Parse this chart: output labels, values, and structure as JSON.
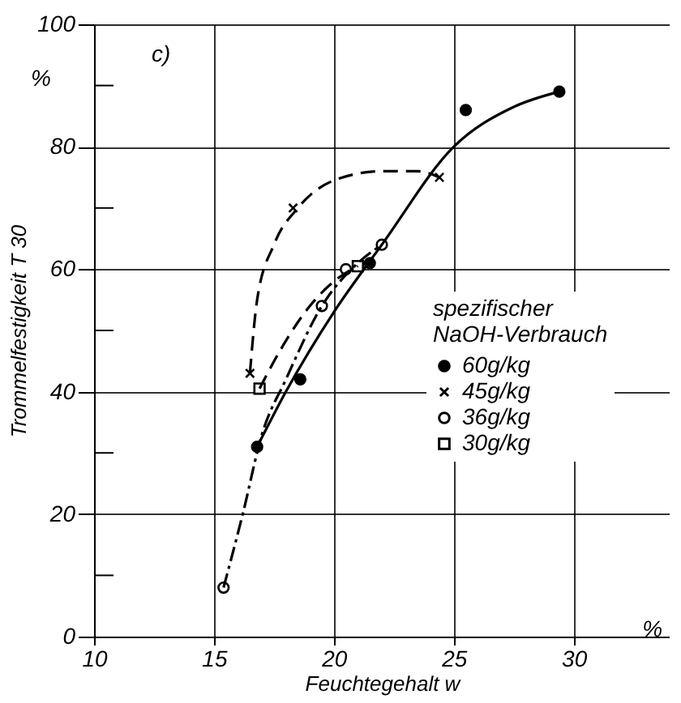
{
  "chart_data": {
    "type": "scatter",
    "xlabel": "Feuchtegehalt w",
    "ylabel": "Trommelfestigkeit T 30",
    "legend_title": "spezifischer\nNaOH-Verbrauch",
    "xlim": [
      10,
      34
    ],
    "xticks": [
      10,
      15,
      20,
      25,
      30
    ],
    "ylim": [
      0,
      100
    ],
    "yticks": [
      0,
      {
        "value": 10,
        "label": null
      },
      20,
      {
        "value": 30,
        "label": null
      },
      40,
      {
        "value": 50,
        "label": null
      },
      60,
      {
        "value": 70,
        "label": null
      },
      80,
      {
        "value": 90,
        "label": null
      },
      100
    ],
    "grid": true,
    "legend": "right",
    "annotations": [
      "c)",
      "%",
      "%"
    ],
    "series": [
      {
        "name": "60g/kg",
        "color": "#000000",
        "marker": "circle",
        "x": [
          16.8,
          18.6,
          21.5,
          25.5,
          29.4
        ],
        "values": [
          31,
          42,
          61,
          86,
          89
        ]
      },
      {
        "name": "45g/kg",
        "color": "#000000",
        "marker": "cross",
        "x": [
          16.5,
          18.3,
          24.4
        ],
        "values": [
          43,
          70,
          75
        ]
      },
      {
        "name": "36g/kg",
        "color": "#ffffff",
        "marker": "circle",
        "x": [
          15.4,
          19.5,
          20.5,
          22.0
        ],
        "values": [
          8,
          54,
          60,
          64
        ]
      },
      {
        "name": "30g/kg",
        "color": "#ffffff",
        "marker": "square",
        "x": [
          16.9,
          21.0
        ],
        "values": [
          40.5,
          60.5
        ]
      },
      {
        "type": "line",
        "color": "#000000",
        "line_style": "solid",
        "x": [
          16.8,
          18,
          20,
          22,
          25,
          27.5,
          29.4
        ],
        "values": [
          31,
          40,
          53,
          64,
          80,
          86.5,
          89
        ]
      },
      {
        "type": "line",
        "color": "#000000",
        "line_style": "dashed",
        "x": [
          16.5,
          16.8,
          17.5,
          18.5,
          20,
          22,
          23.5,
          24.4
        ],
        "values": [
          43,
          55,
          64,
          70,
          74.5,
          76,
          76,
          75
        ]
      },
      {
        "type": "line",
        "color": "#000000",
        "line_style": "dashdot",
        "x": [
          15.4,
          16.2,
          17,
          18,
          19.5,
          21,
          22
        ],
        "values": [
          8,
          20,
          33,
          42,
          54,
          61,
          64
        ]
      },
      {
        "type": "line",
        "color": "#000000",
        "line_style": "dashed",
        "x": [
          16.9,
          17.8,
          19,
          20,
          21
        ],
        "values": [
          40.5,
          47,
          54,
          58,
          60.5
        ]
      }
    ]
  }
}
